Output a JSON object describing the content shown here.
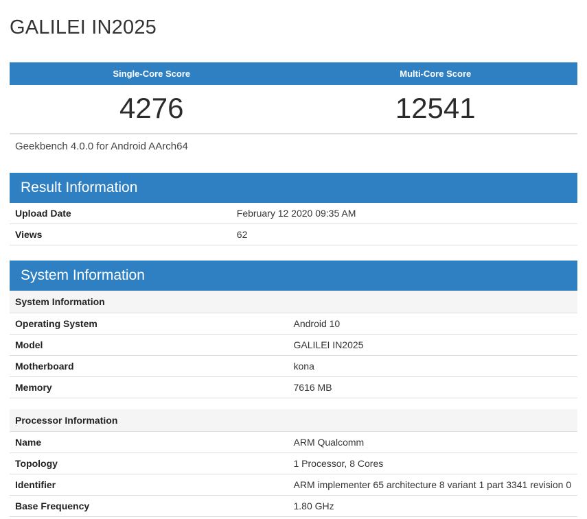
{
  "colors": {
    "accent_blue": "#2e80c2",
    "subheader_bg": "#f5f5f5",
    "border": "#dddddd"
  },
  "page": {
    "title": "GALILEI IN2025"
  },
  "scores": {
    "columns": [
      {
        "label": "Single-Core Score",
        "value": "4276"
      },
      {
        "label": "Multi-Core Score",
        "value": "12541"
      }
    ],
    "caption": "Geekbench 4.0.0 for Android AArch64"
  },
  "result_information": {
    "header": "Result Information",
    "rows": [
      {
        "label": "Upload Date",
        "value": "February 12 2020 09:35 AM"
      },
      {
        "label": "Views",
        "value": "62"
      }
    ]
  },
  "system_information": {
    "header": "System Information",
    "system_table": {
      "title": "System Information",
      "rows": [
        {
          "label": "Operating System",
          "value": "Android 10"
        },
        {
          "label": "Model",
          "value": "GALILEI IN2025"
        },
        {
          "label": "Motherboard",
          "value": "kona"
        },
        {
          "label": "Memory",
          "value": "7616 MB"
        }
      ]
    },
    "processor_table": {
      "title": "Processor Information",
      "rows": [
        {
          "label": "Name",
          "value": "ARM Qualcomm"
        },
        {
          "label": "Topology",
          "value": "1 Processor, 8 Cores"
        },
        {
          "label": "Identifier",
          "value": "ARM implementer 65 architecture 8 variant 1 part 3341 revision 0"
        },
        {
          "label": "Base Frequency",
          "value": "1.80 GHz"
        }
      ]
    }
  }
}
